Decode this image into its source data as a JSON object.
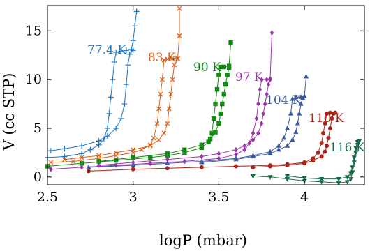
{
  "chart_data": {
    "type": "line",
    "xlabel": "logP (mbar)",
    "ylabel": "V (cc STP)",
    "xlim": [
      2.5,
      4.35
    ],
    "ylim": [
      -0.8,
      17.6
    ],
    "xticks": [
      "2.5",
      "3",
      "3.5",
      "4"
    ],
    "xtick_values": [
      2.5,
      3.0,
      3.5,
      4.0
    ],
    "yticks": [
      "0",
      "5",
      "10",
      "15"
    ],
    "ytick_values": [
      0,
      5,
      10,
      15
    ],
    "grid": false,
    "series": [
      {
        "name": "77.4 K",
        "color": "#1f77c4",
        "marker": "plus",
        "adsorption": [
          [
            2.5,
            2.0
          ],
          [
            2.6,
            2.1
          ],
          [
            2.7,
            2.4
          ],
          [
            2.75,
            2.8
          ],
          [
            2.8,
            3.3
          ],
          [
            2.83,
            3.9
          ],
          [
            2.85,
            5.0
          ],
          [
            2.86,
            6.5
          ],
          [
            2.87,
            8.2
          ],
          [
            2.88,
            10.0
          ],
          [
            2.89,
            11.8
          ],
          [
            2.9,
            12.8
          ],
          [
            2.93,
            12.9
          ],
          [
            2.96,
            13.0
          ],
          [
            2.99,
            13.1
          ],
          [
            3.0,
            14.0
          ],
          [
            3.01,
            15.5
          ],
          [
            3.02,
            17.0
          ]
        ],
        "desorption": [
          [
            3.0,
            13.0
          ],
          [
            2.98,
            12.6
          ],
          [
            2.97,
            11.5
          ],
          [
            2.96,
            9.5
          ],
          [
            2.95,
            7.5
          ],
          [
            2.93,
            6.0
          ],
          [
            2.9,
            5.0
          ],
          [
            2.85,
            4.2
          ],
          [
            2.8,
            3.7
          ],
          [
            2.7,
            3.2
          ],
          [
            2.6,
            2.9
          ],
          [
            2.52,
            2.7
          ]
        ]
      },
      {
        "name": "83 K",
        "color": "#d95f1a",
        "marker": "x",
        "adsorption": [
          [
            2.52,
            1.5
          ],
          [
            2.65,
            1.6
          ],
          [
            2.8,
            1.9
          ],
          [
            2.9,
            2.2
          ],
          [
            3.0,
            2.5
          ],
          [
            3.05,
            2.8
          ],
          [
            3.1,
            3.3
          ],
          [
            3.12,
            4.0
          ],
          [
            3.14,
            5.5
          ],
          [
            3.15,
            7.0
          ],
          [
            3.16,
            8.5
          ],
          [
            3.17,
            10.0
          ],
          [
            3.18,
            12.0
          ],
          [
            3.2,
            12.1
          ],
          [
            3.23,
            12.2
          ],
          [
            3.26,
            12.2
          ],
          [
            3.27,
            14.5
          ],
          [
            3.27,
            17.3
          ]
        ],
        "desorption": [
          [
            3.26,
            12.1
          ],
          [
            3.24,
            11.5
          ],
          [
            3.23,
            10.0
          ],
          [
            3.22,
            8.5
          ],
          [
            3.21,
            7.0
          ],
          [
            3.2,
            5.5
          ],
          [
            3.18,
            4.5
          ],
          [
            3.15,
            3.8
          ],
          [
            3.1,
            3.2
          ],
          [
            3.0,
            2.8
          ],
          [
            2.9,
            2.5
          ],
          [
            2.8,
            2.2
          ],
          [
            2.7,
            2.0
          ],
          [
            2.6,
            1.8
          ]
        ]
      },
      {
        "name": "90 K",
        "color": "#148a14",
        "marker": "square",
        "adsorption": [
          [
            2.5,
            1.1
          ],
          [
            2.7,
            1.4
          ],
          [
            2.9,
            1.7
          ],
          [
            3.1,
            2.0
          ],
          [
            3.2,
            2.2
          ],
          [
            3.3,
            2.5
          ],
          [
            3.4,
            3.0
          ],
          [
            3.44,
            3.6
          ],
          [
            3.46,
            4.5
          ],
          [
            3.47,
            6.0
          ],
          [
            3.48,
            7.5
          ],
          [
            3.49,
            9.0
          ],
          [
            3.5,
            10.5
          ],
          [
            3.51,
            11.3
          ],
          [
            3.53,
            11.3
          ],
          [
            3.56,
            11.4
          ],
          [
            3.57,
            13.8
          ]
        ],
        "desorption": [
          [
            3.56,
            11.2
          ],
          [
            3.55,
            10.5
          ],
          [
            3.54,
            9.5
          ],
          [
            3.53,
            8.5
          ],
          [
            3.52,
            7.5
          ],
          [
            3.51,
            6.5
          ],
          [
            3.5,
            5.5
          ],
          [
            3.48,
            4.6
          ],
          [
            3.45,
            3.9
          ],
          [
            3.4,
            3.3
          ],
          [
            3.3,
            2.8
          ],
          [
            3.2,
            2.4
          ],
          [
            3.0,
            2.0
          ],
          [
            2.8,
            1.6
          ]
        ]
      },
      {
        "name": "97 K",
        "color": "#9b34a8",
        "marker": "diamond",
        "adsorption": [
          [
            2.52,
            0.8
          ],
          [
            2.7,
            1.0
          ],
          [
            2.9,
            1.2
          ],
          [
            3.1,
            1.4
          ],
          [
            3.3,
            1.6
          ],
          [
            3.5,
            1.9
          ],
          [
            3.6,
            2.3
          ],
          [
            3.65,
            2.8
          ],
          [
            3.68,
            3.5
          ],
          [
            3.7,
            4.5
          ],
          [
            3.72,
            6.0
          ],
          [
            3.73,
            7.5
          ],
          [
            3.74,
            9.0
          ],
          [
            3.75,
            10.0
          ],
          [
            3.78,
            10.0
          ],
          [
            3.8,
            10.1
          ],
          [
            3.81,
            14.8
          ]
        ],
        "desorption": [
          [
            3.8,
            10.0
          ],
          [
            3.79,
            9.5
          ],
          [
            3.78,
            8.5
          ],
          [
            3.77,
            7.5
          ],
          [
            3.76,
            6.5
          ],
          [
            3.75,
            5.5
          ],
          [
            3.73,
            4.5
          ],
          [
            3.7,
            3.8
          ],
          [
            3.65,
            3.2
          ],
          [
            3.6,
            2.8
          ],
          [
            3.5,
            2.4
          ],
          [
            3.4,
            2.1
          ],
          [
            3.2,
            1.8
          ],
          [
            3.0,
            1.5
          ],
          [
            2.8,
            1.2
          ]
        ]
      },
      {
        "name": "104 K",
        "color": "#3c5a9a",
        "marker": "triangle-up",
        "adsorption": [
          [
            2.74,
            1.0
          ],
          [
            3.0,
            1.2
          ],
          [
            3.2,
            1.4
          ],
          [
            3.4,
            1.6
          ],
          [
            3.6,
            1.9
          ],
          [
            3.7,
            2.2
          ],
          [
            3.8,
            2.6
          ],
          [
            3.85,
            3.2
          ],
          [
            3.88,
            4.0
          ],
          [
            3.9,
            5.0
          ],
          [
            3.92,
            6.5
          ],
          [
            3.93,
            8.0
          ],
          [
            3.95,
            8.2
          ],
          [
            3.98,
            8.2
          ],
          [
            4.0,
            8.3
          ],
          [
            4.01,
            10.3
          ]
        ],
        "desorption": [
          [
            3.99,
            8.1
          ],
          [
            3.98,
            7.5
          ],
          [
            3.97,
            6.5
          ],
          [
            3.96,
            5.5
          ],
          [
            3.95,
            4.6
          ],
          [
            3.93,
            3.8
          ],
          [
            3.9,
            3.2
          ],
          [
            3.85,
            2.8
          ],
          [
            3.8,
            2.4
          ],
          [
            3.7,
            2.1
          ],
          [
            3.6,
            1.8
          ],
          [
            3.4,
            1.5
          ]
        ]
      },
      {
        "name": "110 K",
        "color": "#ab2419",
        "marker": "circle",
        "adsorption": [
          [
            2.74,
            0.6
          ],
          [
            3.0,
            0.8
          ],
          [
            3.2,
            0.9
          ],
          [
            3.4,
            1.0
          ],
          [
            3.6,
            1.1
          ],
          [
            3.8,
            1.2
          ],
          [
            3.9,
            1.3
          ],
          [
            4.0,
            1.5
          ],
          [
            4.05,
            1.9
          ],
          [
            4.08,
            2.5
          ],
          [
            4.1,
            3.5
          ],
          [
            4.11,
            4.5
          ],
          [
            4.12,
            5.5
          ],
          [
            4.13,
            6.5
          ],
          [
            4.15,
            6.6
          ],
          [
            4.18,
            6.6
          ]
        ],
        "desorption": [
          [
            4.17,
            6.5
          ],
          [
            4.16,
            6.0
          ],
          [
            4.15,
            5.0
          ],
          [
            4.14,
            4.0
          ],
          [
            4.13,
            3.2
          ],
          [
            4.12,
            2.6
          ],
          [
            4.1,
            2.1
          ],
          [
            4.05,
            1.7
          ],
          [
            4.0,
            1.4
          ],
          [
            3.9,
            1.2
          ],
          [
            3.8,
            1.1
          ],
          [
            3.7,
            1.0
          ]
        ]
      },
      {
        "name": "116 K",
        "color": "#1a6b47",
        "marker": "triangle-down",
        "adsorption": [
          [
            3.7,
            0.1
          ],
          [
            3.8,
            0.0
          ],
          [
            3.9,
            -0.2
          ],
          [
            4.0,
            -0.4
          ],
          [
            4.1,
            -0.5
          ],
          [
            4.2,
            -0.6
          ],
          [
            4.25,
            -0.5
          ],
          [
            4.27,
            -0.2
          ],
          [
            4.28,
            0.5
          ],
          [
            4.29,
            1.5
          ],
          [
            4.3,
            2.5
          ],
          [
            4.31,
            3.3
          ],
          [
            4.32,
            3.7
          ]
        ],
        "desorption": [
          [
            4.31,
            3.6
          ],
          [
            4.3,
            3.0
          ],
          [
            4.29,
            2.0
          ],
          [
            4.28,
            1.0
          ],
          [
            4.27,
            0.4
          ],
          [
            4.25,
            0.0
          ],
          [
            4.2,
            -0.2
          ],
          [
            4.1,
            -0.2
          ],
          [
            4.0,
            -0.1
          ],
          [
            3.9,
            0.1
          ]
        ]
      }
    ]
  }
}
